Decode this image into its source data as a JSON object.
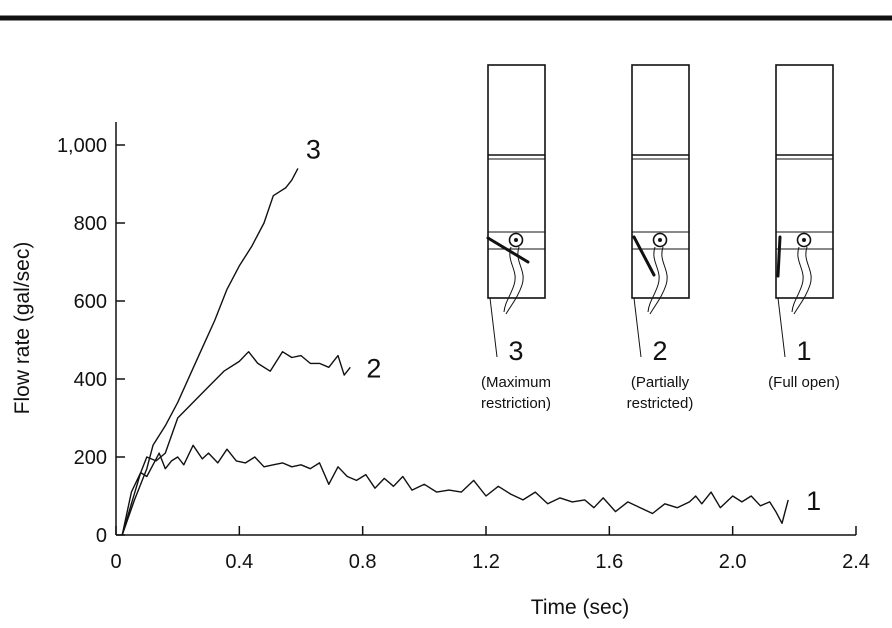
{
  "chart_data": {
    "type": "line",
    "title": "",
    "xlabel": "Time (sec)",
    "ylabel": "Flow rate (gal/sec)",
    "xlim": [
      0,
      2.4
    ],
    "ylim": [
      0,
      1000
    ],
    "x_ticks": [
      {
        "value": 0,
        "label": "0"
      },
      {
        "value": 0.4,
        "label": "0.4"
      },
      {
        "value": 0.8,
        "label": "0.8"
      },
      {
        "value": 1.2,
        "label": "1.2"
      },
      {
        "value": 1.6,
        "label": "1.6"
      },
      {
        "value": 2.0,
        "label": "2.0"
      },
      {
        "value": 2.4,
        "label": "2.4"
      }
    ],
    "y_ticks": [
      {
        "value": 0,
        "label": "0"
      },
      {
        "value": 200,
        "label": "200"
      },
      {
        "value": 400,
        "label": "400"
      },
      {
        "value": 600,
        "label": "600"
      },
      {
        "value": 800,
        "label": "800"
      },
      {
        "value": 1000,
        "label": "1,000"
      }
    ],
    "grid": false,
    "legend": "none",
    "series": [
      {
        "name": "1",
        "x": [
          0.02,
          0.05,
          0.08,
          0.1,
          0.12,
          0.14,
          0.16,
          0.18,
          0.2,
          0.22,
          0.25,
          0.28,
          0.3,
          0.33,
          0.36,
          0.39,
          0.42,
          0.45,
          0.48,
          0.51,
          0.54,
          0.57,
          0.6,
          0.63,
          0.66,
          0.69,
          0.72,
          0.75,
          0.78,
          0.81,
          0.84,
          0.87,
          0.9,
          0.93,
          0.96,
          1.0,
          1.04,
          1.08,
          1.12,
          1.16,
          1.2,
          1.24,
          1.28,
          1.32,
          1.36,
          1.4,
          1.44,
          1.48,
          1.52,
          1.55,
          1.58,
          1.62,
          1.66,
          1.7,
          1.74,
          1.78,
          1.82,
          1.86,
          1.88,
          1.9,
          1.93,
          1.96,
          2.0,
          2.03,
          2.06,
          2.09,
          2.12,
          2.14,
          2.16,
          2.18
        ],
        "y": [
          0,
          110,
          160,
          150,
          180,
          210,
          170,
          190,
          200,
          180,
          230,
          195,
          210,
          185,
          220,
          190,
          185,
          200,
          175,
          180,
          185,
          175,
          180,
          170,
          185,
          130,
          175,
          150,
          140,
          155,
          120,
          145,
          125,
          150,
          115,
          130,
          110,
          115,
          110,
          140,
          100,
          125,
          105,
          90,
          110,
          80,
          95,
          85,
          90,
          70,
          95,
          60,
          85,
          70,
          55,
          80,
          70,
          85,
          100,
          80,
          110,
          70,
          100,
          85,
          100,
          75,
          85,
          60,
          30,
          90
        ]
      },
      {
        "name": "2",
        "x": [
          0.02,
          0.05,
          0.08,
          0.1,
          0.13,
          0.16,
          0.2,
          0.25,
          0.3,
          0.35,
          0.4,
          0.43,
          0.46,
          0.5,
          0.54,
          0.57,
          0.6,
          0.63,
          0.66,
          0.69,
          0.72,
          0.74,
          0.76
        ],
        "y": [
          0,
          80,
          160,
          200,
          190,
          210,
          300,
          340,
          380,
          420,
          445,
          470,
          440,
          420,
          470,
          455,
          460,
          440,
          440,
          430,
          460,
          410,
          430
        ]
      },
      {
        "name": "3",
        "x": [
          0.02,
          0.06,
          0.1,
          0.12,
          0.16,
          0.2,
          0.24,
          0.28,
          0.32,
          0.36,
          0.4,
          0.44,
          0.48,
          0.51,
          0.53,
          0.55,
          0.57,
          0.59
        ],
        "y": [
          0,
          90,
          170,
          230,
          280,
          340,
          410,
          480,
          550,
          630,
          690,
          740,
          800,
          870,
          880,
          890,
          910,
          940
        ]
      }
    ],
    "curve_labels": [
      {
        "series": "1",
        "text": "1"
      },
      {
        "series": "2",
        "text": "2"
      },
      {
        "series": "3",
        "text": "3"
      }
    ]
  },
  "inset": {
    "panels": [
      {
        "number": "3",
        "caption": [
          "(Maximum",
          "restriction)"
        ],
        "flap": "maximum"
      },
      {
        "number": "2",
        "caption": [
          "(Partially",
          "restricted)"
        ],
        "flap": "partial"
      },
      {
        "number": "1",
        "caption": [
          "(Full open)"
        ],
        "flap": "open"
      }
    ]
  }
}
